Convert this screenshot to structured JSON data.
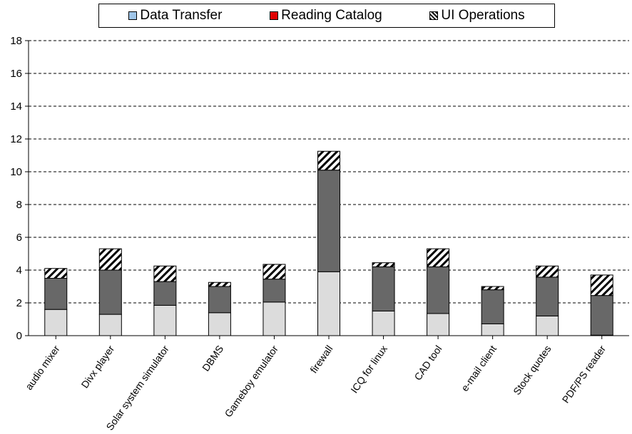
{
  "chart_data": {
    "type": "bar",
    "stacked": true,
    "categories": [
      "audio mixer",
      "Divx player",
      "Solar system simulator",
      "DBMS",
      "Gameboy emulator",
      "firewall",
      "ICQ for linux",
      "CAD tool",
      "e-mail client",
      "Stock quotes",
      "PDF/PS reader"
    ],
    "series": [
      {
        "name": "Data Transfer",
        "values": [
          1.6,
          1.3,
          1.85,
          1.4,
          2.05,
          3.9,
          1.5,
          1.35,
          0.72,
          1.2,
          0.03
        ]
      },
      {
        "name": "Reading Catalog",
        "values": [
          1.9,
          2.7,
          1.45,
          1.6,
          1.4,
          6.2,
          2.7,
          2.85,
          2.08,
          2.37,
          2.42
        ]
      },
      {
        "name": "UI Operations",
        "values": [
          0.6,
          1.3,
          0.95,
          0.25,
          0.9,
          1.15,
          0.25,
          1.1,
          0.2,
          0.68,
          1.25
        ]
      }
    ],
    "ylim": [
      0,
      18
    ],
    "yticks": [
      0,
      2,
      4,
      6,
      8,
      10,
      12,
      14,
      16,
      18
    ],
    "grid": true,
    "legend": "top",
    "colors": {
      "legend_data_transfer": "#9fc5e8",
      "legend_reading_catalog": "#e00000",
      "bar_data_transfer": "#dcdcdc",
      "bar_reading_catalog": "#686868",
      "bar_ui_operations": "#ffffff",
      "hatch": "#000000"
    }
  }
}
